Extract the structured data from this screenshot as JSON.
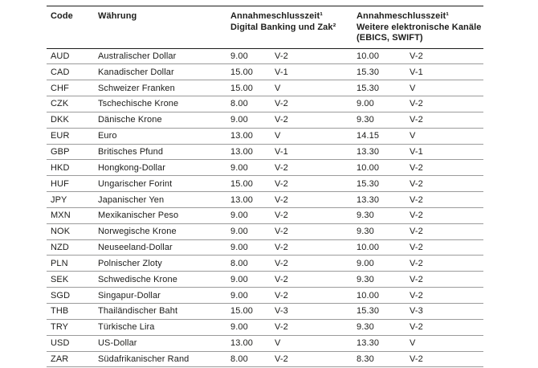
{
  "table": {
    "header": {
      "code": "Code",
      "currency": "Währung",
      "digital": {
        "line1": "Annahmeschlusszeit¹",
        "line2": "Digital Banking und Zak²"
      },
      "electronic": {
        "line1": "Annahmeschlusszeit¹",
        "line2": "Weitere elektronische Kanäle",
        "line3": "(EBICS, SWIFT)"
      }
    },
    "rows": [
      {
        "code": "AUD",
        "currency": "Australischer Dollar",
        "digital_time": "9.00",
        "digital_valuta": "V-2",
        "electronic_time": "10.00",
        "electronic_valuta": "V-2"
      },
      {
        "code": "CAD",
        "currency": "Kanadischer Dollar",
        "digital_time": "15.00",
        "digital_valuta": "V-1",
        "electronic_time": "15.30",
        "electronic_valuta": "V-1"
      },
      {
        "code": "CHF",
        "currency": "Schweizer Franken",
        "digital_time": "15.00",
        "digital_valuta": "V",
        "electronic_time": "15.30",
        "electronic_valuta": "V"
      },
      {
        "code": "CZK",
        "currency": "Tschechische Krone",
        "digital_time": "8.00",
        "digital_valuta": "V-2",
        "electronic_time": "9.00",
        "electronic_valuta": "V-2"
      },
      {
        "code": "DKK",
        "currency": "Dänische Krone",
        "digital_time": "9.00",
        "digital_valuta": "V-2",
        "electronic_time": "9.30",
        "electronic_valuta": "V-2"
      },
      {
        "code": "EUR",
        "currency": "Euro",
        "digital_time": "13.00",
        "digital_valuta": "V",
        "electronic_time": "14.15",
        "electronic_valuta": "V"
      },
      {
        "code": "GBP",
        "currency": "Britisches Pfund",
        "digital_time": "13.00",
        "digital_valuta": "V-1",
        "electronic_time": "13.30",
        "electronic_valuta": "V-1"
      },
      {
        "code": "HKD",
        "currency": "Hongkong-Dollar",
        "digital_time": "9.00",
        "digital_valuta": "V-2",
        "electronic_time": "10.00",
        "electronic_valuta": "V-2"
      },
      {
        "code": "HUF",
        "currency": "Ungarischer Forint",
        "digital_time": "15.00",
        "digital_valuta": "V-2",
        "electronic_time": "15.30",
        "electronic_valuta": "V-2"
      },
      {
        "code": "JPY",
        "currency": "Japanischer Yen",
        "digital_time": "13.00",
        "digital_valuta": "V-2",
        "electronic_time": "13.30",
        "electronic_valuta": "V-2"
      },
      {
        "code": "MXN",
        "currency": "Mexikanischer Peso",
        "digital_time": "9.00",
        "digital_valuta": "V-2",
        "electronic_time": "9.30",
        "electronic_valuta": "V-2"
      },
      {
        "code": "NOK",
        "currency": "Norwegische Krone",
        "digital_time": "9.00",
        "digital_valuta": "V-2",
        "electronic_time": "9.30",
        "electronic_valuta": "V-2"
      },
      {
        "code": "NZD",
        "currency": "Neuseeland-Dollar",
        "digital_time": "9.00",
        "digital_valuta": "V-2",
        "electronic_time": "10.00",
        "electronic_valuta": "V-2"
      },
      {
        "code": "PLN",
        "currency": "Polnischer Zloty",
        "digital_time": "8.00",
        "digital_valuta": "V-2",
        "electronic_time": "9.00",
        "electronic_valuta": "V-2"
      },
      {
        "code": "SEK",
        "currency": "Schwedische Krone",
        "digital_time": "9.00",
        "digital_valuta": "V-2",
        "electronic_time": "9.30",
        "electronic_valuta": "V-2"
      },
      {
        "code": "SGD",
        "currency": "Singapur-Dollar",
        "digital_time": "9.00",
        "digital_valuta": "V-2",
        "electronic_time": "10.00",
        "electronic_valuta": "V-2"
      },
      {
        "code": "THB",
        "currency": "Thailändischer Baht",
        "digital_time": "15.00",
        "digital_valuta": "V-3",
        "electronic_time": "15.30",
        "electronic_valuta": "V-3"
      },
      {
        "code": "TRY",
        "currency": "Türkische Lira",
        "digital_time": "9.00",
        "digital_valuta": "V-2",
        "electronic_time": "9.30",
        "electronic_valuta": "V-2"
      },
      {
        "code": "USD",
        "currency": "US-Dollar",
        "digital_time": "13.00",
        "digital_valuta": "V",
        "electronic_time": "13.30",
        "electronic_valuta": "V"
      },
      {
        "code": "ZAR",
        "currency": "Südafrikanischer Rand",
        "digital_time": "8.00",
        "digital_valuta": "V-2",
        "electronic_time": "8.30",
        "electronic_valuta": "V-2"
      }
    ]
  },
  "colors": {
    "text": "#1d1d1b",
    "header_border": "#1d1d1b",
    "row_border": "#9b9b9b",
    "background": "#ffffff"
  }
}
